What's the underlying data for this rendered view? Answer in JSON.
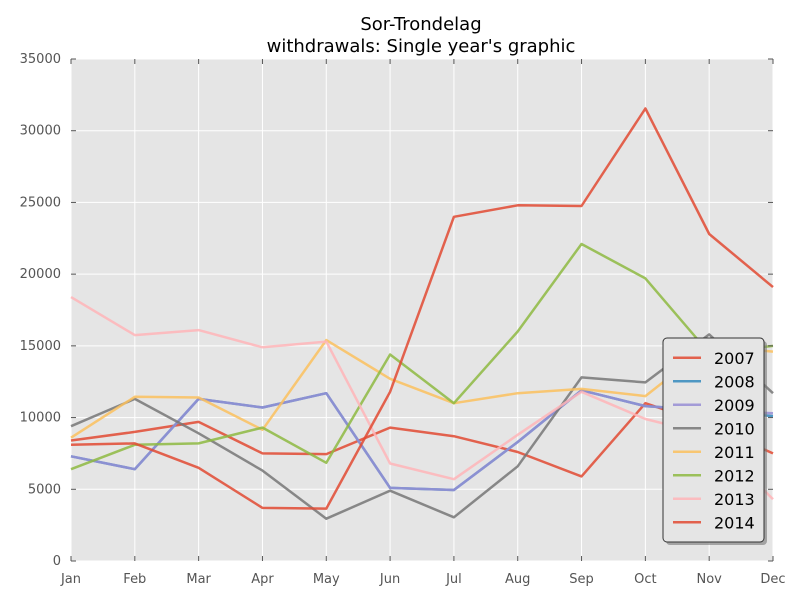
{
  "chart_data": {
    "type": "line",
    "title_line1": "Sor-Trondelag",
    "title_line2": "withdrawals: Single year's graphic",
    "xlabel": "",
    "ylabel": "",
    "categories": [
      "Jan",
      "Feb",
      "Mar",
      "Apr",
      "May",
      "Jun",
      "Jul",
      "Aug",
      "Sep",
      "Oct",
      "Nov",
      "Dec"
    ],
    "y_ticks": [
      "0",
      "5000",
      "10000",
      "15000",
      "20000",
      "25000",
      "30000",
      "35000"
    ],
    "ylim": [
      0,
      35000
    ],
    "grid": true,
    "legend_position": "bottom-right",
    "plot_background": "#e5e5e5",
    "series": [
      {
        "name": "2007",
        "color": "#e24a33",
        "values": [
          8400,
          9000,
          9700,
          7500,
          7450,
          9300,
          8700,
          7600,
          5900,
          11000,
          9500,
          7500
        ]
      },
      {
        "name": "2008",
        "color": "#348abd",
        "values": [
          7300,
          6400,
          11300,
          10700,
          11700,
          5100,
          4950,
          8300,
          11900,
          10800,
          10500,
          10100
        ]
      },
      {
        "name": "2009",
        "color": "#988ed5",
        "values": [
          7300,
          6400,
          11300,
          10700,
          11700,
          5100,
          4950,
          8300,
          11900,
          10800,
          10500,
          10300
        ]
      },
      {
        "name": "2010",
        "color": "#777777",
        "values": [
          9400,
          11300,
          8900,
          6300,
          2950,
          4900,
          3050,
          6600,
          12800,
          12450,
          15800,
          11700
        ]
      },
      {
        "name": "2011",
        "color": "#fbc15e",
        "values": [
          8600,
          11450,
          11400,
          9150,
          15400,
          12700,
          11000,
          11700,
          12000,
          11500,
          15000,
          14600
        ]
      },
      {
        "name": "2012",
        "color": "#8eba42",
        "values": [
          6400,
          8100,
          8200,
          9300,
          6850,
          14400,
          11000,
          16000,
          22100,
          19700,
          14500,
          15000
        ]
      },
      {
        "name": "2013",
        "color": "#ffb5b8",
        "values": [
          18400,
          15750,
          16100,
          14900,
          15300,
          6800,
          5700,
          8800,
          11800,
          9900,
          8800,
          4300
        ]
      },
      {
        "name": "2014",
        "color": "#e24a33",
        "values": [
          8100,
          8200,
          6500,
          3700,
          3650,
          11800,
          24000,
          24800,
          24750,
          31550,
          22800,
          19100
        ]
      }
    ]
  }
}
